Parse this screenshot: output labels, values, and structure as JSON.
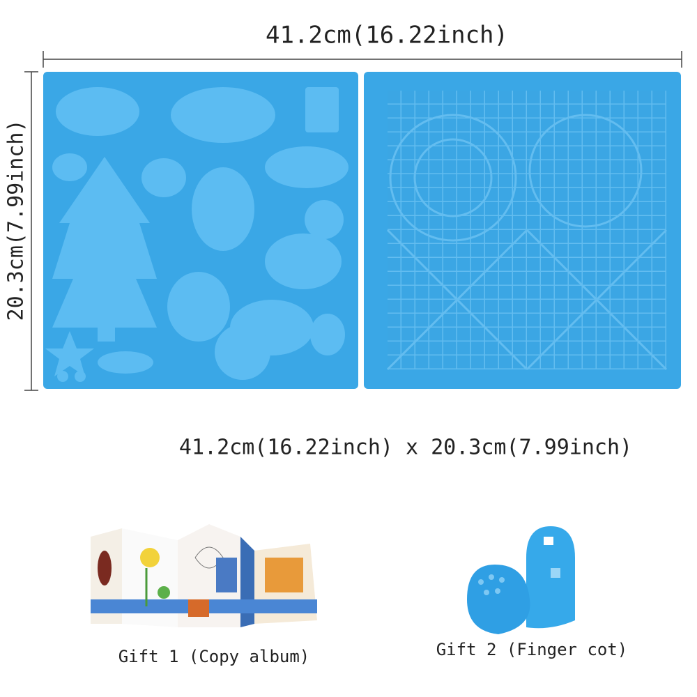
{
  "dimensions": {
    "width_label": "41.2cm(16.22inch)",
    "height_label": "20.3cm(7.99inch)",
    "summary": "41.2cm(16.22inch) x 20.3cm(7.99inch)"
  },
  "gifts": [
    {
      "label": "Gift 1 (Copy album)"
    },
    {
      "label": "Gift 2 (Finger cot)"
    }
  ]
}
